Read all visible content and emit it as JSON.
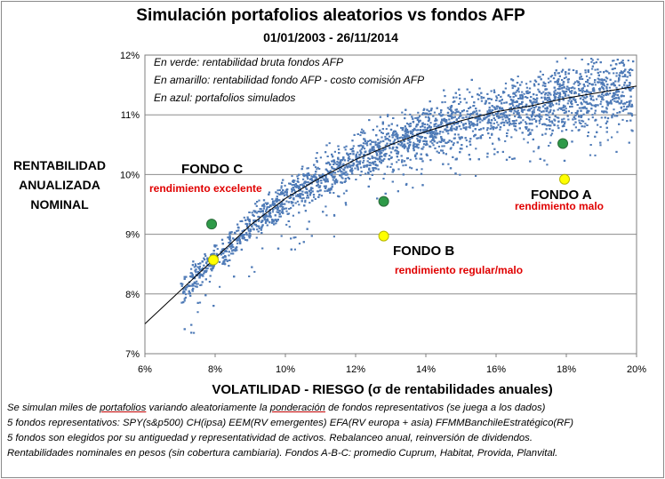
{
  "chart_data": {
    "type": "scatter",
    "title": "Simulación portafolios aleatorios vs fondos AFP",
    "subtitle": "01/01/2003 - 26/11/2014",
    "xlabel": "VOLATILIDAD - RIESGO (σ de rentabilidades anuales)",
    "ylabel_lines": [
      "RENTABILIDAD",
      "ANUALIZADA",
      "NOMINAL"
    ],
    "xlim": [
      6,
      20
    ],
    "ylim": [
      7,
      12
    ],
    "x_unit": "%",
    "y_unit": "%",
    "x_ticks": [
      "6%",
      "8%",
      "10%",
      "12%",
      "14%",
      "16%",
      "18%",
      "20%"
    ],
    "y_ticks": [
      "7%",
      "8%",
      "9%",
      "10%",
      "11%",
      "12%"
    ],
    "grid": "horizontal",
    "annotations": [
      "En verde: rentabilidad bruta fondos AFP",
      "En amarillo: rentabilidad  fondo AFP - costo comisión AFP",
      "En azul: portafolios simulados"
    ],
    "colors": {
      "simulated": "#4f7bb7",
      "gross": "#2e9a48",
      "net": "#ffff00",
      "frontier": "#000000"
    },
    "frontier": {
      "x": [
        6.0,
        7.0,
        8.0,
        9.0,
        10.0,
        11.0,
        12.0,
        13.0,
        14.0,
        15.0,
        16.0,
        17.0,
        18.0,
        19.0,
        20.0
      ],
      "y": [
        7.5,
        8.05,
        8.6,
        9.15,
        9.6,
        9.95,
        10.25,
        10.5,
        10.72,
        10.9,
        11.05,
        11.15,
        11.28,
        11.38,
        11.48
      ]
    },
    "series": [
      {
        "name": "En verde: rentabilidad bruta fondos AFP",
        "points": [
          {
            "fund": "FONDO C",
            "x": 7.9,
            "y": 9.17
          },
          {
            "fund": "FONDO B",
            "x": 12.8,
            "y": 9.55
          },
          {
            "fund": "FONDO A",
            "x": 17.9,
            "y": 10.52
          }
        ]
      },
      {
        "name": "En amarillo: rentabilidad  fondo AFP - costo comisión AFP",
        "points": [
          {
            "fund": "FONDO C",
            "x": 7.95,
            "y": 8.57
          },
          {
            "fund": "FONDO B",
            "x": 12.8,
            "y": 8.97
          },
          {
            "fund": "FONDO A",
            "x": 17.95,
            "y": 9.92
          }
        ]
      }
    ],
    "fund_labels": [
      {
        "name": "FONDO C",
        "rating": "rendimiento excelente"
      },
      {
        "name": "FONDO B",
        "rating": "rendimiento regular/malo"
      },
      {
        "name": "FONDO A",
        "rating": "rendimiento malo"
      }
    ]
  },
  "notes": {
    "line1_a": "Se simulan miles de ",
    "line1_b": "portafolios",
    "line1_c": " variando aleatoriamente la ",
    "line1_d": "ponderación",
    "line1_e": " de fondos representativos (se juega a los dados)",
    "line2": "5 fondos representativos: SPY(s&p500) CH(ipsa) EEM(RV emergentes) EFA(RV europa + asia)  FFMMBanchileEstratégico(RF)",
    "line3": "5 fondos son elegidos por su antiguedad y representatividad de activos. Rebalanceo anual, reinversión de dividendos.",
    "line4": "Rentabilidades nominales en pesos (sin cobertura cambiaria). Fondos A-B-C: promedio Cuprum, Habitat, Provida, Planvital."
  }
}
